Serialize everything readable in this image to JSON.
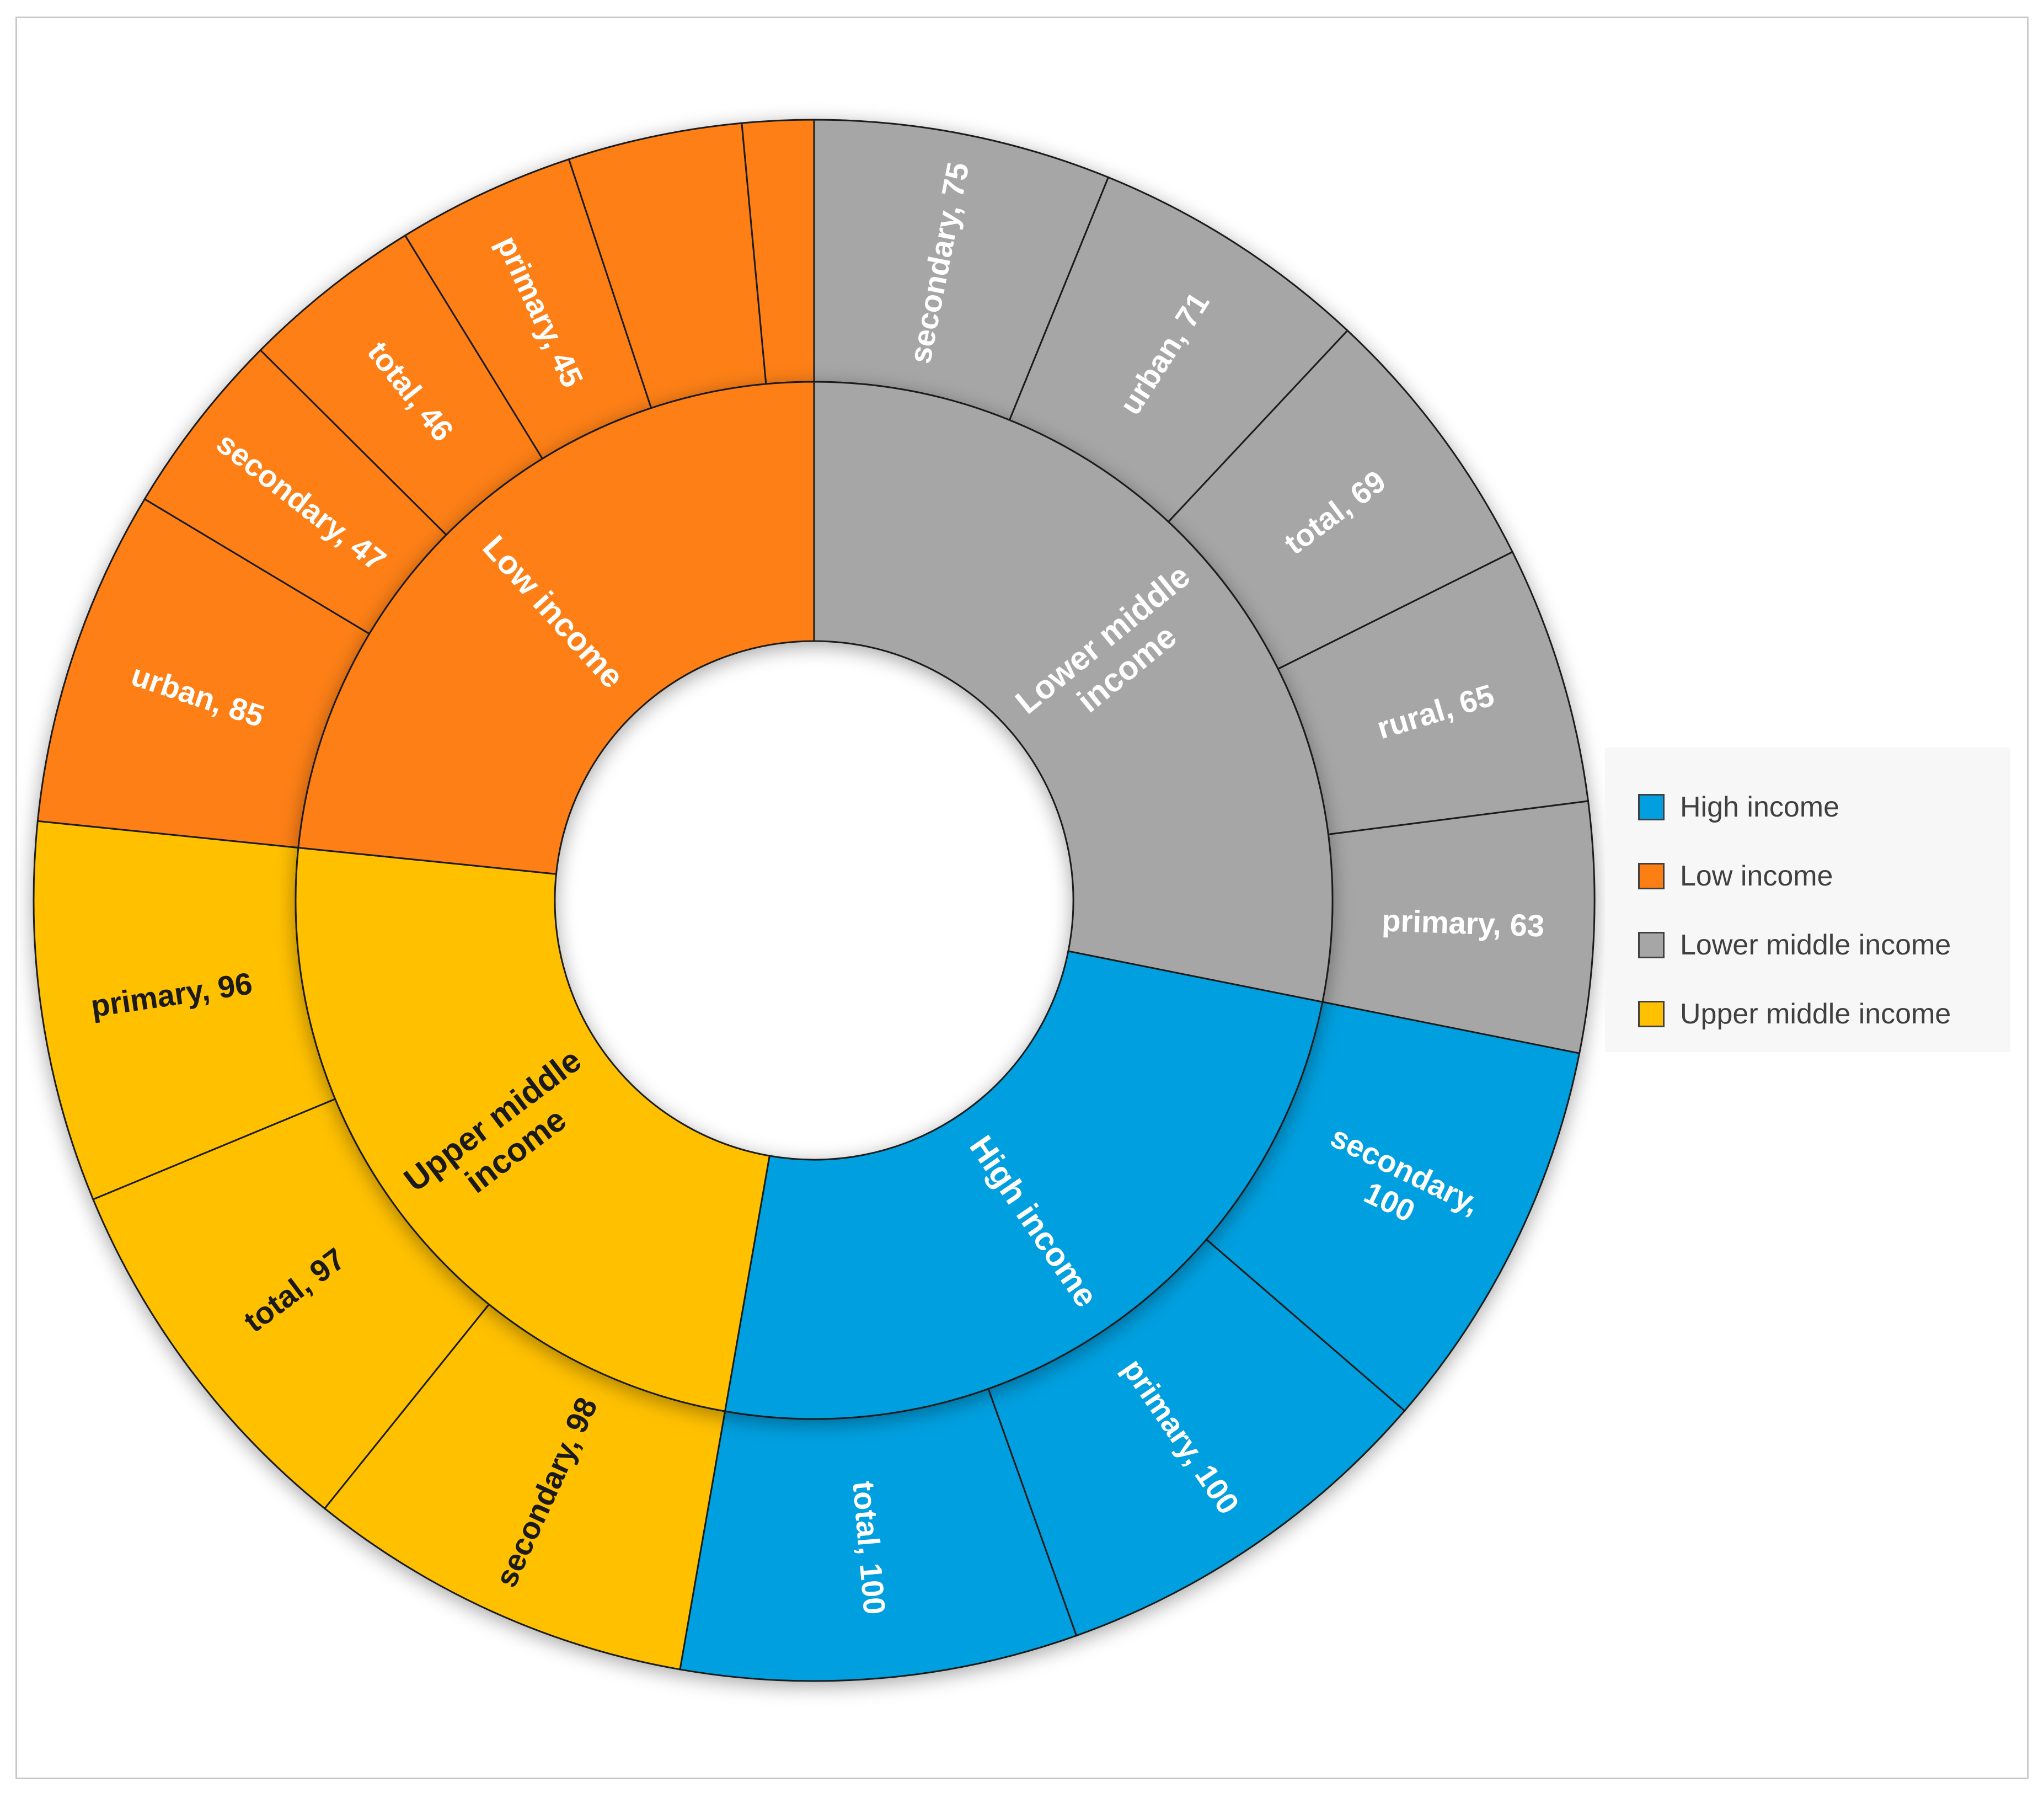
{
  "chart_data": {
    "type": "sunburst",
    "title": "",
    "colors": {
      "High income": "#009fdf",
      "Low income": "#fd7f13",
      "Lower middle income": "#a6a6a6",
      "Upper middle income": "#ffc000"
    },
    "text_colors": {
      "High income": "#ffffff",
      "Low income": "#ffffff",
      "Lower middle income": "#ffffff",
      "Upper middle income": "#1a1a1a"
    },
    "groups": [
      {
        "name": "Lower middle income",
        "label_lines": [
          "Lower middle",
          "income"
        ],
        "children": [
          {
            "label": "secondary, 75",
            "category": "secondary",
            "value": 75
          },
          {
            "label": "urban, 71",
            "category": "urban",
            "value": 71
          },
          {
            "label": "total, 69",
            "category": "total",
            "value": 69
          },
          {
            "label": "rural, 65",
            "category": "rural",
            "value": 65
          },
          {
            "label": "primary, 63",
            "category": "primary",
            "value": 63
          }
        ]
      },
      {
        "name": "High income",
        "label_lines": [
          "High income"
        ],
        "children": [
          {
            "label": "secondary, 100",
            "label_lines": [
              "secondary,",
              "100"
            ],
            "category": "secondary",
            "value": 100
          },
          {
            "label": "primary, 100",
            "category": "primary",
            "value": 100
          },
          {
            "label": "total, 100",
            "category": "total",
            "value": 100
          }
        ]
      },
      {
        "name": "Upper middle income",
        "label_lines": [
          "Upper middle",
          "income"
        ],
        "children": [
          {
            "label": "secondary, 98",
            "category": "secondary",
            "value": 98
          },
          {
            "label": "total, 97",
            "category": "total",
            "value": 97
          },
          {
            "label": "primary, 96",
            "category": "primary",
            "value": 96
          }
        ]
      },
      {
        "name": "Low income",
        "label_lines": [
          "Low income"
        ],
        "children": [
          {
            "label": "urban, 85",
            "category": "urban",
            "value": 85
          },
          {
            "label": "secondary, 47",
            "category": "secondary",
            "value": 47
          },
          {
            "label": "total, 46",
            "category": "total",
            "value": 46
          },
          {
            "label": "primary, 45",
            "category": "primary",
            "value": 45
          },
          {
            "label": "",
            "category": "",
            "value": 44
          },
          {
            "label": "",
            "category": "",
            "value": 18
          }
        ]
      }
    ],
    "legend": {
      "position": "right",
      "entries": [
        "High income",
        "Low income",
        "Lower middle income",
        "Upper middle income"
      ]
    }
  }
}
